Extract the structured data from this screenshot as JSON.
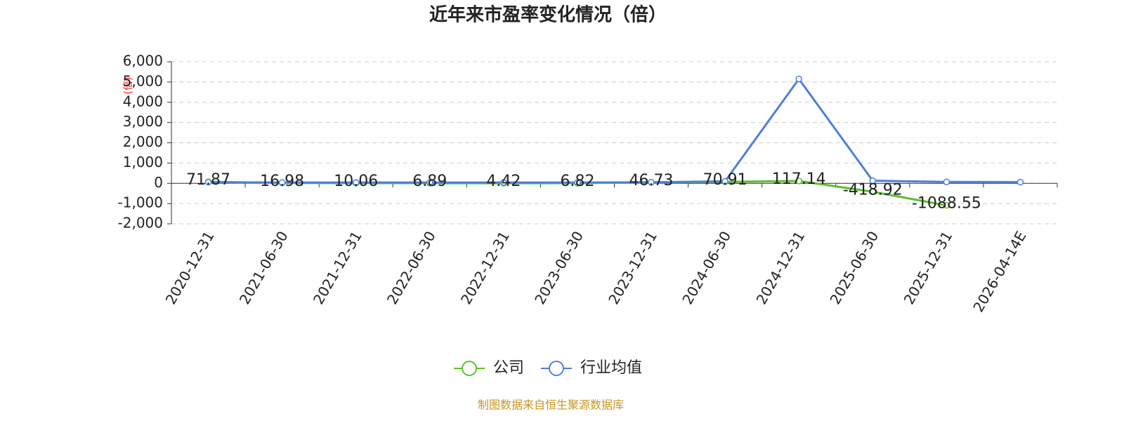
{
  "chart_data": {
    "type": "line",
    "title": "近年来市盈率变化情况（倍）",
    "y_axis_label": "(倍)",
    "footer": "制图数据来自恒生聚源数据库",
    "categories": [
      "2020-12-31",
      "2021-06-30",
      "2021-12-31",
      "2022-06-30",
      "2022-12-31",
      "2023-06-30",
      "2023-12-31",
      "2024-06-30",
      "2024-12-31",
      "2025-06-30",
      "2025-12-31",
      "2026-04-14E"
    ],
    "series": [
      {
        "name": "公司",
        "color": "#5cc02c",
        "show_labels": true,
        "values": [
          71.87,
          16.98,
          10.06,
          6.89,
          4.42,
          6.82,
          46.73,
          70.91,
          117.14,
          -418.92,
          -1088.55,
          null
        ]
      },
      {
        "name": "行业均值",
        "color": "#4f7fdc",
        "show_labels": false,
        "values": [
          50,
          40,
          40,
          40,
          40,
          40,
          50,
          100,
          5150,
          130,
          70,
          60
        ]
      }
    ],
    "ylim": [
      -2000,
      6000
    ],
    "yticks": [
      {
        "value": -2000,
        "label": "-2,000"
      },
      {
        "value": -1000,
        "label": "-1,000"
      },
      0,
      {
        "value": 1000,
        "label": "1,000"
      },
      {
        "value": 2000,
        "label": "2,000"
      },
      {
        "value": 3000,
        "label": "3,000"
      },
      {
        "value": 4000,
        "label": "4,000"
      },
      {
        "value": 5000,
        "label": "5,000"
      },
      {
        "value": 6000,
        "label": "6,000"
      }
    ],
    "grid": true
  }
}
